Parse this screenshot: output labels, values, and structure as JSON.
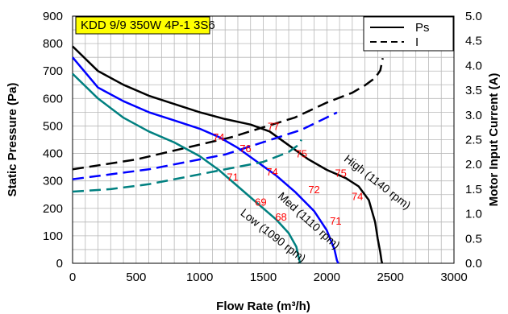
{
  "chart_data": {
    "type": "line",
    "title": "KDD 9/9 350W 4P-1 3S6",
    "title_box_color": "#ffff00",
    "xlabel": "Flow Rate (m³/h)",
    "ylabel": "Static Pressure (Pa)",
    "y2label": "Motor Input Current (A)",
    "xlim": [
      0,
      3000
    ],
    "ylim": [
      0,
      900
    ],
    "y2lim": [
      0,
      5
    ],
    "x_ticks": [
      "0",
      "500",
      "1000",
      "1500",
      "2000",
      "2500",
      "3000"
    ],
    "y_ticks": [
      "0",
      "100",
      "200",
      "300",
      "400",
      "500",
      "600",
      "700",
      "800",
      "900"
    ],
    "y2_ticks": [
      "0.0",
      "0.5",
      "1.0",
      "1.5",
      "2.0",
      "2.5",
      "3.0",
      "3.5",
      "4.0",
      "4.5",
      "5.0"
    ],
    "grid": true,
    "legend": {
      "position": "top-right",
      "entries": [
        {
          "label": "Ps",
          "style": "solid"
        },
        {
          "label": "I",
          "style": "dashed"
        }
      ]
    },
    "series": [
      {
        "name": "High (1140 rpm)",
        "color": "#000000",
        "pressure": {
          "x": [
            0,
            200,
            400,
            600,
            800,
            1000,
            1200,
            1400,
            1550,
            1700,
            1850,
            2000,
            2150,
            2250,
            2330,
            2380,
            2400,
            2420,
            2430,
            2435
          ],
          "y": [
            790,
            700,
            650,
            610,
            580,
            550,
            525,
            505,
            480,
            430,
            380,
            340,
            310,
            280,
            230,
            150,
            90,
            40,
            10,
            0
          ]
        },
        "current": {
          "x": [
            0,
            250,
            500,
            750,
            1000,
            1250,
            1500,
            1750,
            2000,
            2200,
            2300,
            2380,
            2420,
            2440
          ],
          "y": [
            1.9,
            2.0,
            2.1,
            2.25,
            2.4,
            2.55,
            2.75,
            2.95,
            3.25,
            3.45,
            3.6,
            3.75,
            3.9,
            4.15
          ]
        },
        "point_labels": [
          {
            "x": 1800,
            "y": 385,
            "text": "75"
          },
          {
            "x": 2110,
            "y": 315,
            "text": "75"
          },
          {
            "x": 2240,
            "y": 230,
            "text": "74"
          }
        ]
      },
      {
        "name": "Med (1110 rpm)",
        "color": "#0000ff",
        "pressure": {
          "x": [
            0,
            200,
            400,
            600,
            800,
            1000,
            1150,
            1300,
            1450,
            1600,
            1750,
            1900,
            2000,
            2060,
            2080,
            2090
          ],
          "y": [
            750,
            640,
            590,
            550,
            520,
            490,
            460,
            420,
            370,
            320,
            260,
            190,
            120,
            50,
            10,
            0
          ]
        },
        "current": {
          "x": [
            0,
            300,
            600,
            900,
            1200,
            1500,
            1800,
            2000,
            2080
          ],
          "y": [
            1.7,
            1.8,
            1.9,
            2.05,
            2.2,
            2.45,
            2.7,
            2.95,
            3.05
          ]
        },
        "point_labels": [
          {
            "x": 1150,
            "y": 445,
            "text": "74"
          },
          {
            "x": 1360,
            "y": 405,
            "text": "76"
          },
          {
            "x": 1580,
            "y": 485,
            "text": "77"
          },
          {
            "x": 1570,
            "y": 320,
            "text": "74"
          },
          {
            "x": 1900,
            "y": 255,
            "text": "72"
          },
          {
            "x": 2070,
            "y": 140,
            "text": "71"
          }
        ]
      },
      {
        "name": "Low (1090 rpm)",
        "color": "#008080",
        "pressure": {
          "x": [
            0,
            200,
            400,
            600,
            800,
            1000,
            1150,
            1300,
            1450,
            1600,
            1700,
            1760,
            1780,
            1790
          ],
          "y": [
            690,
            600,
            530,
            480,
            440,
            390,
            340,
            280,
            220,
            160,
            110,
            60,
            20,
            0
          ]
        },
        "current": {
          "x": [
            0,
            300,
            600,
            900,
            1200,
            1500,
            1700,
            1780,
            1800
          ],
          "y": [
            1.45,
            1.5,
            1.6,
            1.75,
            1.9,
            2.05,
            2.25,
            2.4,
            2.5
          ]
        },
        "point_labels": [
          {
            "x": 1260,
            "y": 300,
            "text": "71"
          },
          {
            "x": 1480,
            "y": 210,
            "text": "69"
          },
          {
            "x": 1640,
            "y": 155,
            "text": "68"
          }
        ]
      }
    ],
    "curve_labels": [
      {
        "text": "High (1140 rpm)",
        "x": 2380,
        "y": 285,
        "angle": 38
      },
      {
        "text": "Med (1110 rpm)",
        "x": 1840,
        "y": 145,
        "angle": 42
      },
      {
        "text": "Low (1090 rpm)",
        "x": 1560,
        "y": 90,
        "angle": 38
      }
    ]
  }
}
